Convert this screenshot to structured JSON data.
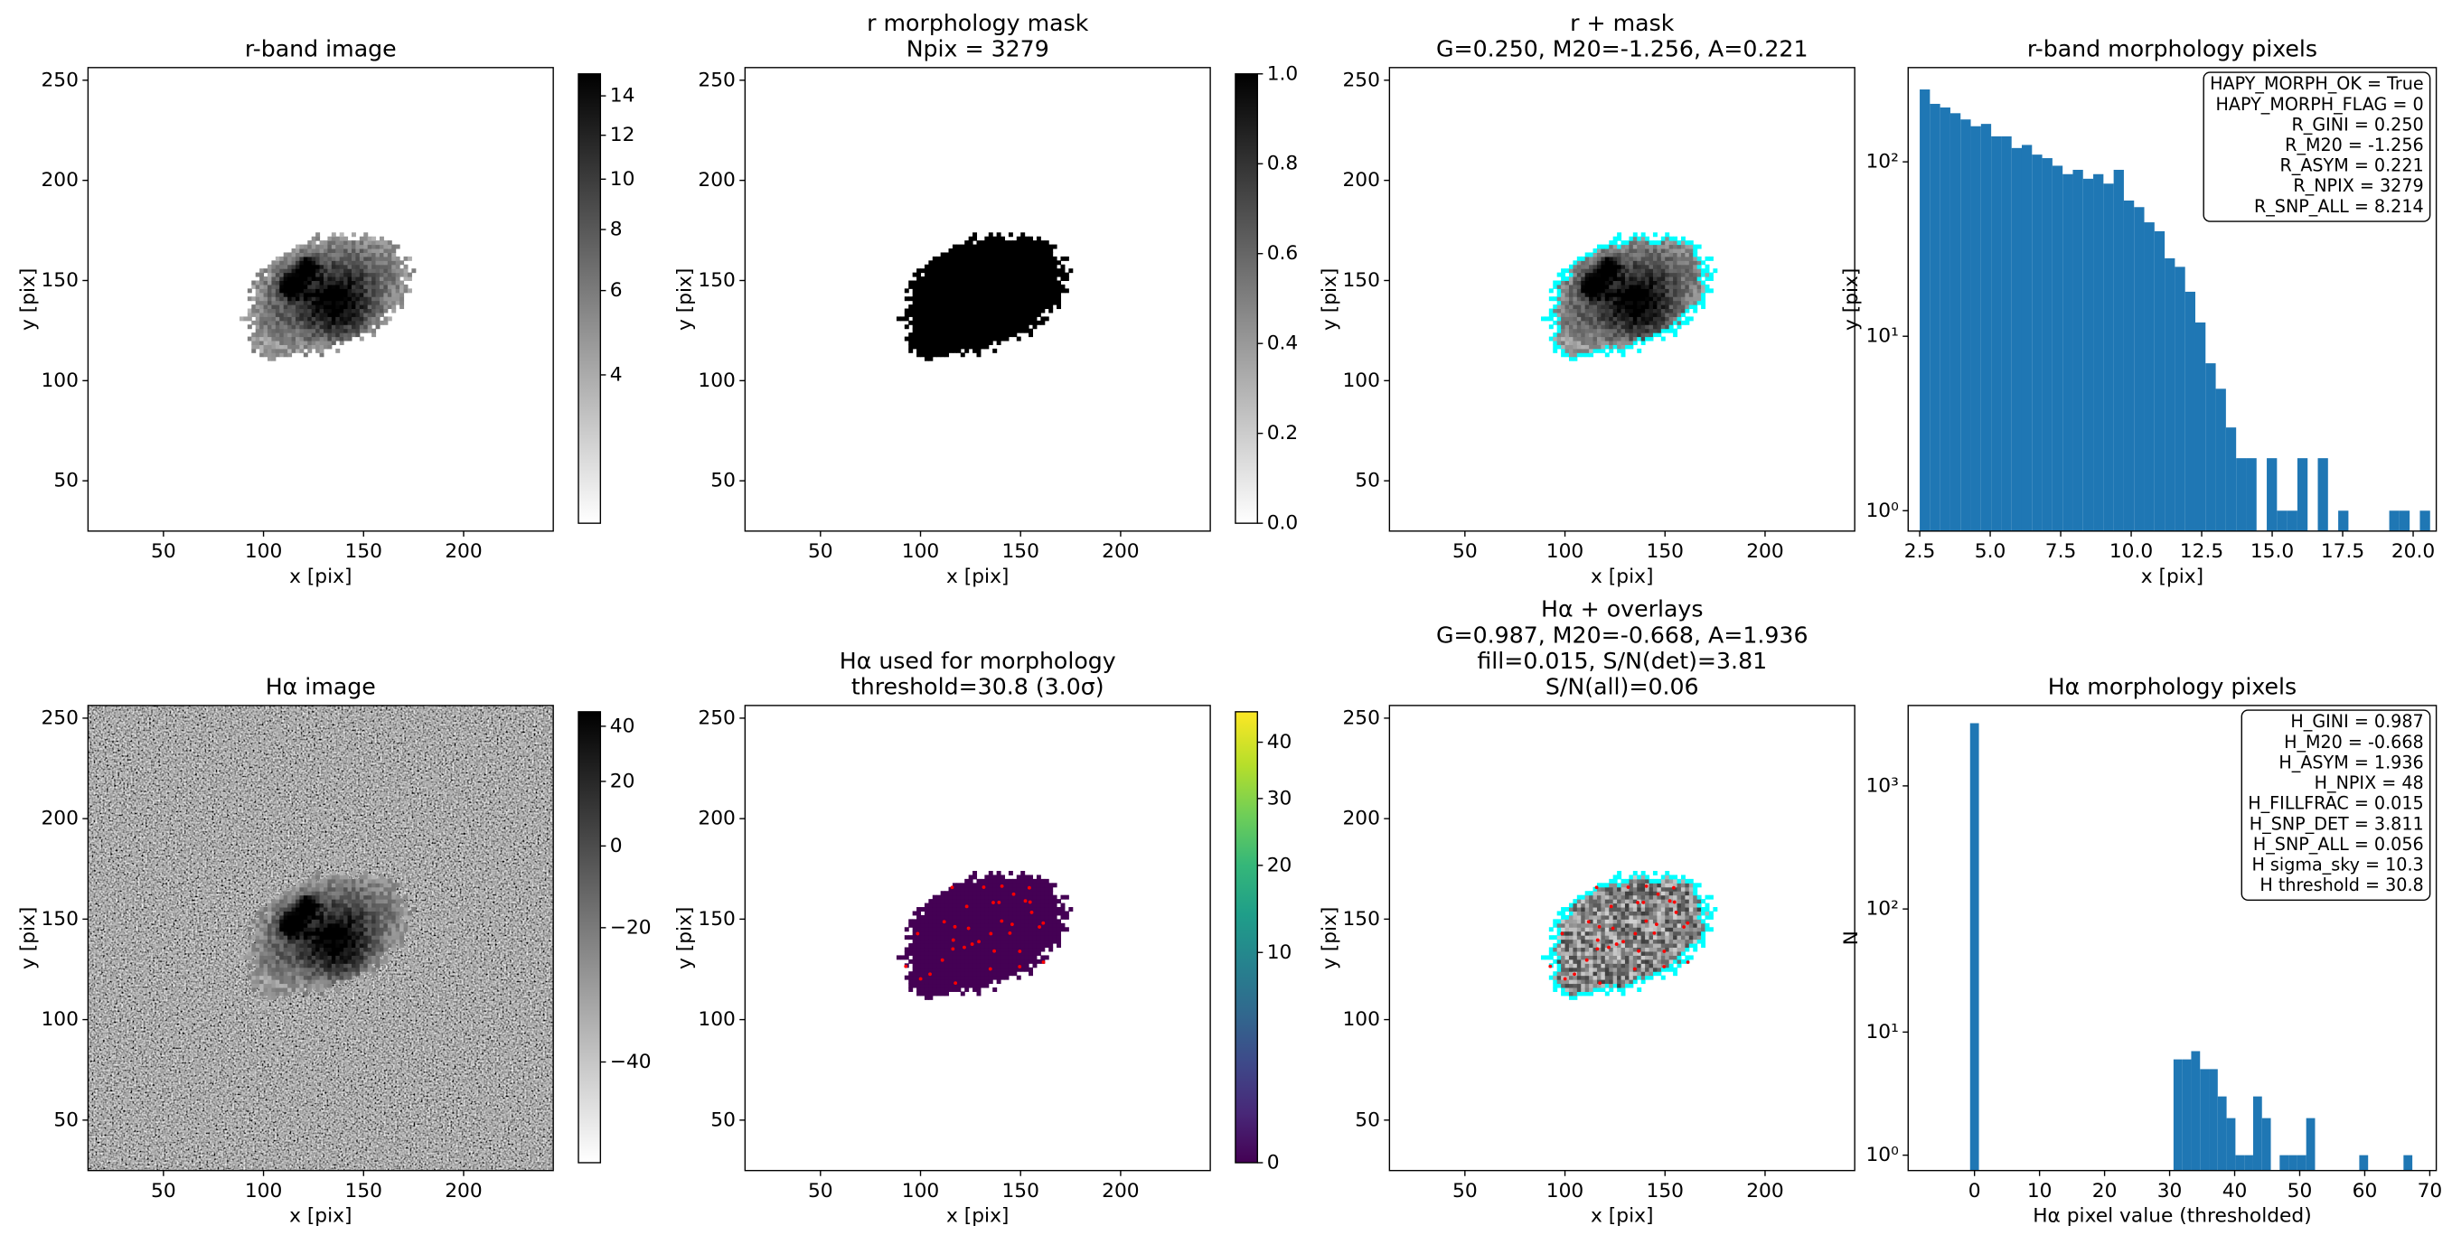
{
  "chart_data": [
    {
      "type": "image",
      "title": [
        "r-band image"
      ],
      "xlabel": "x [pix]",
      "ylabel": "y [pix]",
      "xlim": [
        12.3,
        244.8
      ],
      "ylim": [
        24.9,
        256.3
      ],
      "xticks": [
        50,
        100,
        150,
        200
      ],
      "yticks": [
        50,
        100,
        150,
        200,
        250
      ],
      "colorbar": {
        "cmap": "gray_r",
        "stretch": "sqrt",
        "lim": [
          2.63,
          15.2
        ],
        "ticks": [
          4,
          6,
          8,
          10,
          12,
          14
        ]
      }
    },
    {
      "type": "image",
      "title": [
        "r morphology mask",
        "Npix = 3279"
      ],
      "xlabel": "x [pix]",
      "ylabel": "y [pix]",
      "xlim": [
        12.3,
        244.8
      ],
      "ylim": [
        24.9,
        256.3
      ],
      "xticks": [
        50,
        100,
        150,
        200
      ],
      "yticks": [
        50,
        100,
        150,
        200,
        250
      ],
      "fill_color": "#000000",
      "colorbar": {
        "cmap": "gray_r",
        "stretch": "linear",
        "lim": [
          0,
          1
        ],
        "ticks": [
          {
            "value": 0,
            "label": "0.0"
          },
          0.2,
          0.4,
          0.6,
          0.8,
          {
            "value": 1,
            "label": "1.0"
          }
        ]
      }
    },
    {
      "type": "image",
      "title": [
        "r + mask",
        "G=0.250, M20=-1.256, A=0.221"
      ],
      "xlabel": "x [pix]",
      "ylabel": "y [pix]",
      "xlim": [
        12.3,
        244.8
      ],
      "ylim": [
        24.9,
        256.3
      ],
      "xticks": [
        50,
        100,
        150,
        200
      ],
      "yticks": [
        50,
        100,
        150,
        200,
        250
      ],
      "contour_color": "#00ffff"
    },
    {
      "type": "histogram",
      "title": [
        "r-band morphology pixels"
      ],
      "xlabel": "x [pix]",
      "ylabel": "y [pix]",
      "color": "#1f77b4",
      "log_y": true,
      "xlim": [
        2.09,
        20.82
      ],
      "ylim": [
        0.764,
        347
      ],
      "xticks": [
        2.5,
        {
          "value": 5,
          "label": "5.0"
        },
        7.5,
        {
          "value": 10,
          "label": "10.0"
        },
        12.5,
        {
          "value": 15,
          "label": "15.0"
        },
        17.5,
        {
          "value": 20,
          "label": "20.0"
        }
      ],
      "yticks": [
        {
          "value": 1,
          "label": "10⁰"
        },
        {
          "value": 10,
          "label": "10¹"
        },
        {
          "value": 100,
          "label": "10²"
        }
      ],
      "bins": [
        2.5,
        2.862,
        3.224,
        3.586,
        3.948,
        4.31,
        4.672,
        5.034,
        5.396,
        5.758,
        6.12,
        6.482,
        6.844,
        7.206,
        7.568,
        7.93,
        8.292,
        8.654,
        9.016,
        9.378,
        9.74,
        10.102,
        10.464,
        10.826,
        11.188,
        11.55,
        11.912,
        12.274,
        12.636,
        12.998,
        13.36,
        13.722,
        14.084,
        14.446,
        14.808,
        15.17,
        15.532,
        15.894,
        16.256,
        16.618,
        16.98,
        17.342,
        17.704,
        18.066,
        18.428,
        18.79,
        19.152,
        19.514,
        19.876,
        20.238,
        20.6
      ],
      "values": [
        260,
        215,
        205,
        190,
        175,
        160,
        165,
        140,
        140,
        120,
        125,
        110,
        105,
        95,
        85,
        90,
        80,
        85,
        75,
        90,
        60,
        55,
        45,
        40,
        28,
        25,
        18,
        12,
        7,
        5,
        3,
        2,
        2,
        0,
        2,
        1,
        1,
        2,
        0,
        2,
        0,
        1,
        0,
        0,
        0,
        0,
        1,
        1,
        0,
        1
      ],
      "annotation": [
        "HAPY_MORPH_OK = True",
        "HAPY_MORPH_FLAG = 0",
        "R_GINI = 0.250",
        "R_M20 = -1.256",
        "R_ASYM = 0.221",
        "R_NPIX = 3279",
        "R_SNP_ALL = 8.214"
      ]
    },
    {
      "type": "image",
      "title": [
        "Hα image"
      ],
      "xlabel": "x [pix]",
      "ylabel": "y [pix]",
      "xlim": [
        12.3,
        244.8
      ],
      "ylim": [
        24.9,
        256.3
      ],
      "xticks": [
        50,
        100,
        150,
        200
      ],
      "yticks": [
        50,
        100,
        150,
        200,
        250
      ],
      "colorbar": {
        "cmap": "gray_r",
        "stretch": "sqrt",
        "lim": [
          -44.5,
          45.7
        ],
        "ticks": [
          {
            "value": -40,
            "label": "−40"
          },
          {
            "value": -20,
            "label": "−20"
          },
          0,
          20,
          40
        ]
      }
    },
    {
      "type": "image",
      "title": [
        "Hα used for morphology",
        "threshold=30.8 (3.0σ)"
      ],
      "xlabel": "x [pix]",
      "ylabel": "y [pix]",
      "xlim": [
        12.3,
        244.8
      ],
      "ylim": [
        24.9,
        256.3
      ],
      "xticks": [
        50,
        100,
        150,
        200
      ],
      "yticks": [
        50,
        100,
        150,
        200,
        250
      ],
      "fill_color": "#440154",
      "marker_color": "#ff0000",
      "colorbar": {
        "cmap": "viridis",
        "stretch": "sqrt",
        "lim": [
          0,
          46
        ],
        "ticks": [
          0,
          10,
          20,
          30,
          40
        ]
      }
    },
    {
      "type": "image",
      "title": [
        "Hα + overlays",
        "G=0.987, M20=-0.668, A=1.936",
        "fill=0.015, S/N(det)=3.81",
        "S/N(all)=0.06"
      ],
      "xlabel": "x [pix]",
      "ylabel": "y [pix]",
      "xlim": [
        12.3,
        244.8
      ],
      "ylim": [
        24.9,
        256.3
      ],
      "xticks": [
        50,
        100,
        150,
        200
      ],
      "yticks": [
        50,
        100,
        150,
        200,
        250
      ],
      "contour_color": "#00ffff",
      "marker_color": "#ff0000"
    },
    {
      "type": "histogram",
      "title": [
        "Hα morphology pixels"
      ],
      "xlabel": "Hα pixel value (thresholded)",
      "ylabel": "N",
      "color": "#1f77b4",
      "log_y": true,
      "xlim": [
        -10.2,
        71
      ],
      "ylim": [
        0.75,
        4500
      ],
      "xticks": [
        0,
        10,
        20,
        30,
        40,
        50,
        60,
        70
      ],
      "yticks": [
        {
          "value": 1,
          "label": "10⁰"
        },
        {
          "value": 10,
          "label": "10¹"
        },
        {
          "value": 100,
          "label": "10²"
        },
        {
          "value": 1000,
          "label": "10³"
        }
      ],
      "bins": [
        -0.68,
        0.68,
        2.04,
        3.4,
        4.76,
        6.12,
        7.48,
        8.84,
        10.2,
        11.56,
        12.92,
        14.28,
        15.64,
        17,
        18.36,
        19.72,
        21.08,
        22.44,
        23.8,
        25.16,
        26.52,
        27.88,
        29.24,
        30.6,
        31.96,
        33.32,
        34.68,
        36.04,
        37.4,
        38.76,
        40.12,
        41.48,
        42.84,
        44.2,
        45.56,
        46.92,
        48.28,
        49.64,
        51,
        52.36,
        53.72,
        55.08,
        56.44,
        57.8,
        59.16,
        60.52,
        61.88,
        63.24,
        64.6,
        65.96,
        67.32
      ],
      "values": [
        3231,
        0,
        0,
        0,
        0,
        0,
        0,
        0,
        0,
        0,
        0,
        0,
        0,
        0,
        0,
        0,
        0,
        0,
        0,
        0,
        0,
        0,
        0,
        6,
        6,
        7,
        5,
        5,
        3,
        2,
        1,
        1,
        3,
        2,
        0,
        1,
        1,
        1,
        2,
        0,
        0,
        0,
        0,
        0,
        1,
        0,
        0,
        0,
        0,
        1
      ],
      "annotation": [
        "H_GINI = 0.987",
        "H_M20 = -0.668",
        "H_ASYM = 1.936",
        "H_NPIX = 48",
        "H_FILLFRAC = 0.015",
        "H_SNP_DET = 3.811",
        "H_SNP_ALL = 0.056",
        "H sigma_sky = 10.3",
        "H threshold = 30.8"
      ]
    }
  ]
}
